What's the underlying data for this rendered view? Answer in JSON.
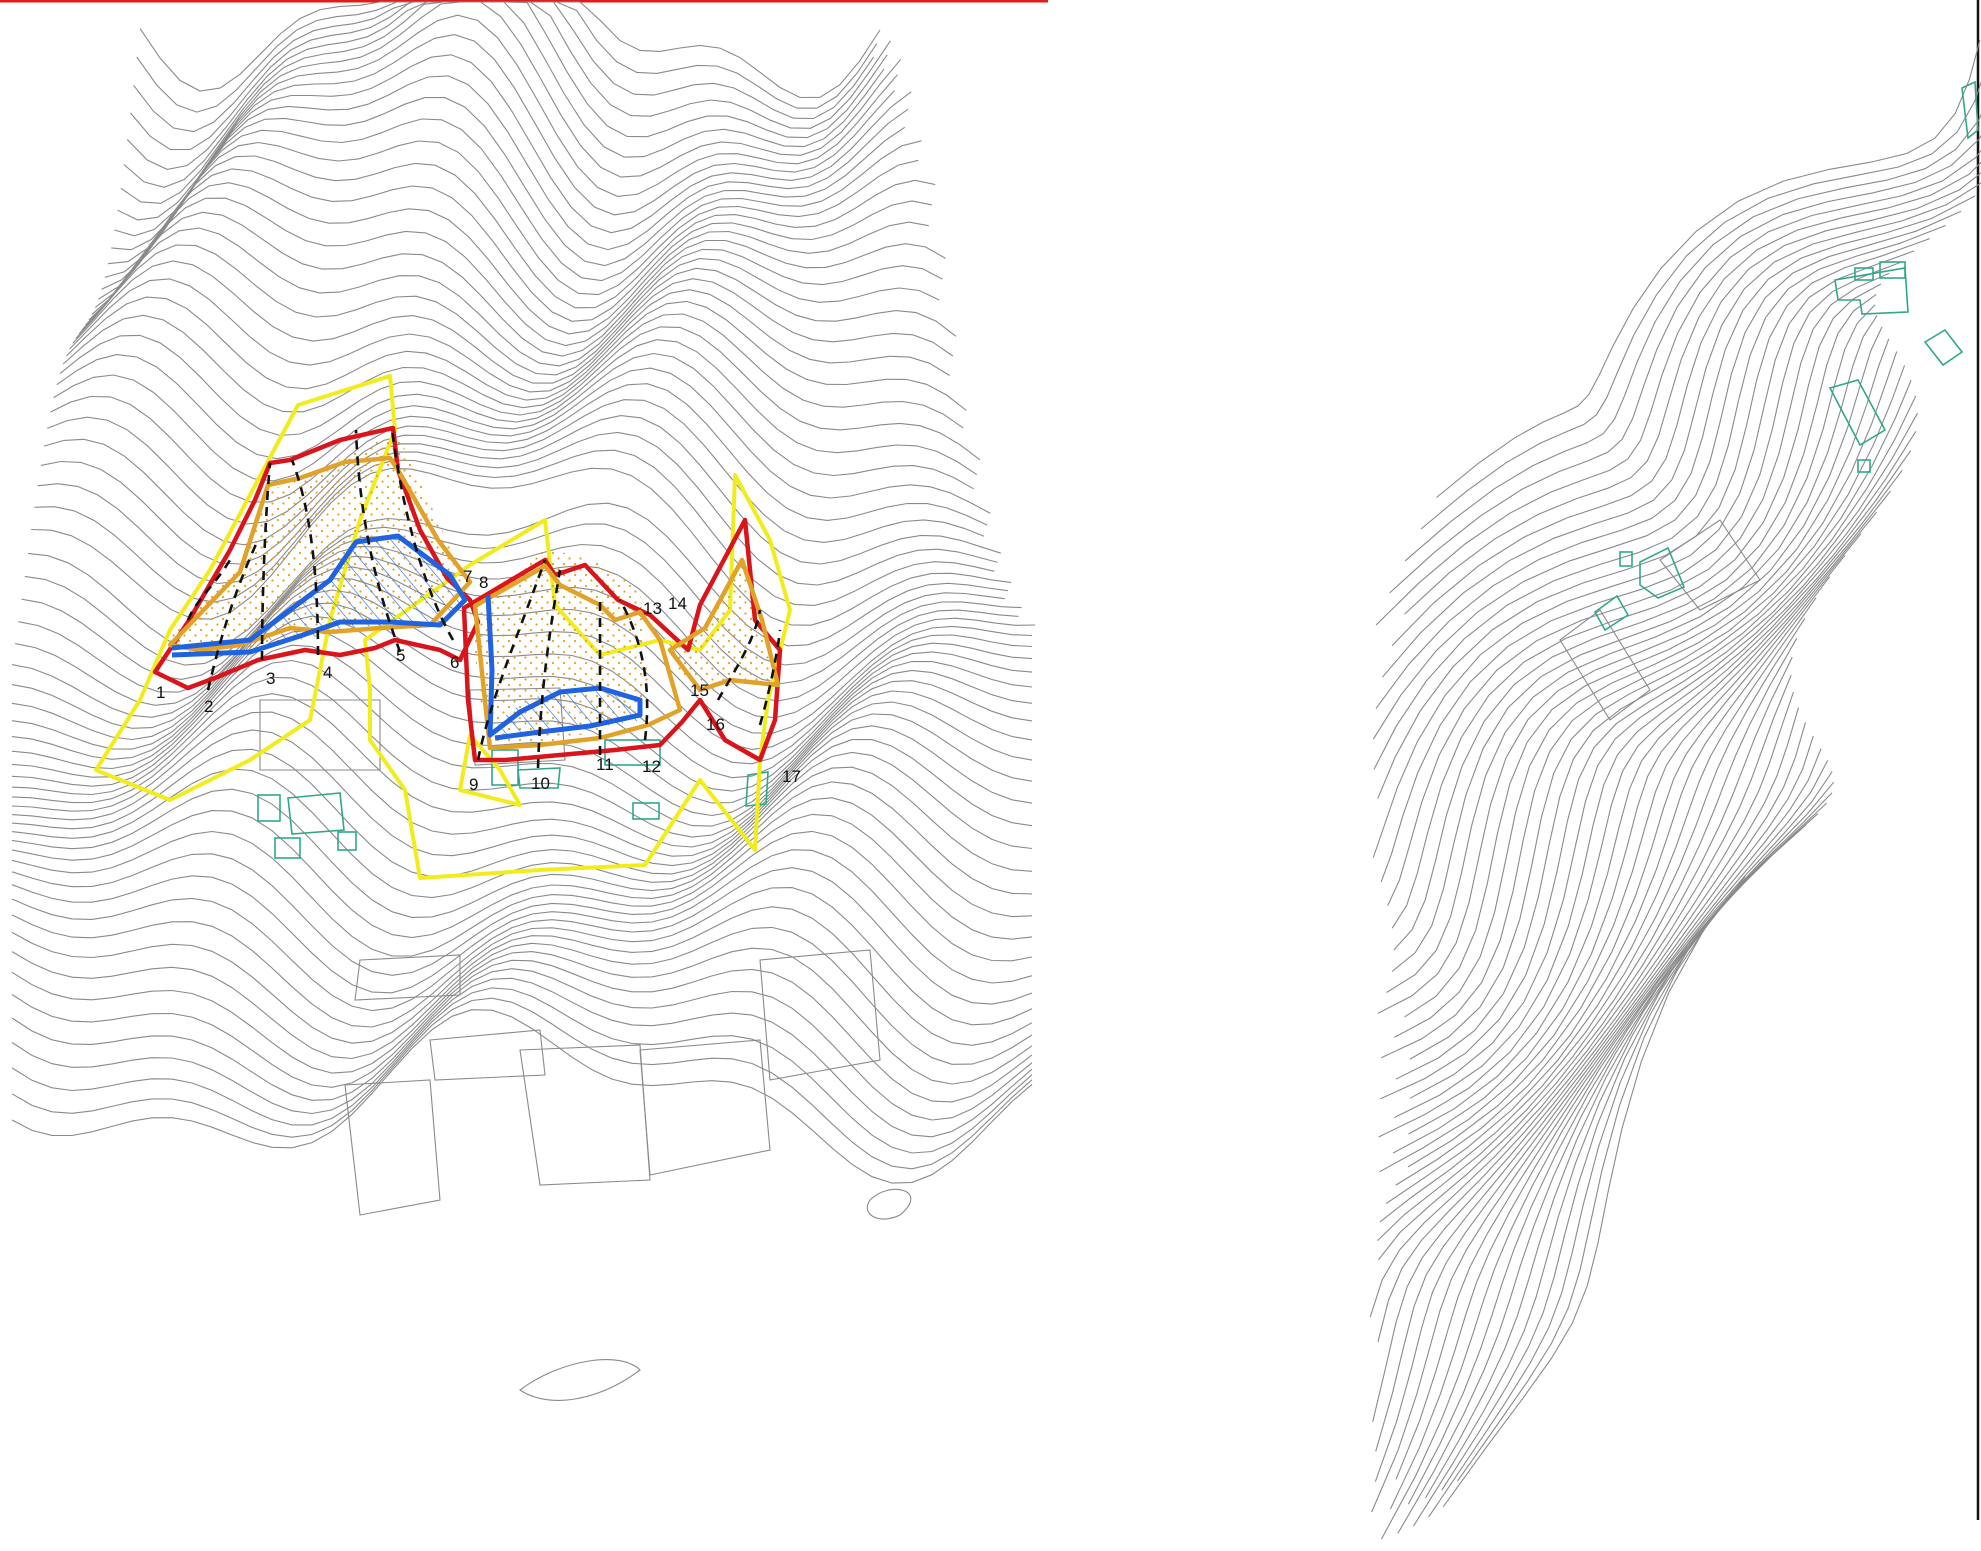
{
  "map": {
    "sections": [
      {
        "label": "1"
      },
      {
        "label": "2"
      },
      {
        "label": "3"
      },
      {
        "label": "4"
      },
      {
        "label": "5"
      },
      {
        "label": "6"
      },
      {
        "label": "7"
      },
      {
        "label": "8"
      },
      {
        "label": "9"
      },
      {
        "label": "10"
      },
      {
        "label": "11"
      },
      {
        "label": "12"
      },
      {
        "label": "13"
      },
      {
        "label": "14"
      },
      {
        "label": "15"
      },
      {
        "label": "16"
      },
      {
        "label": "17"
      }
    ],
    "colors": {
      "contour": "#8a8a8a",
      "building": "#2fa88a",
      "zone_outer": "#f2ec1c",
      "zone_red": "#d9141b",
      "zone_orange": "#e0a229",
      "zone_blue": "#1f63e0",
      "section_line": "#111111"
    }
  }
}
